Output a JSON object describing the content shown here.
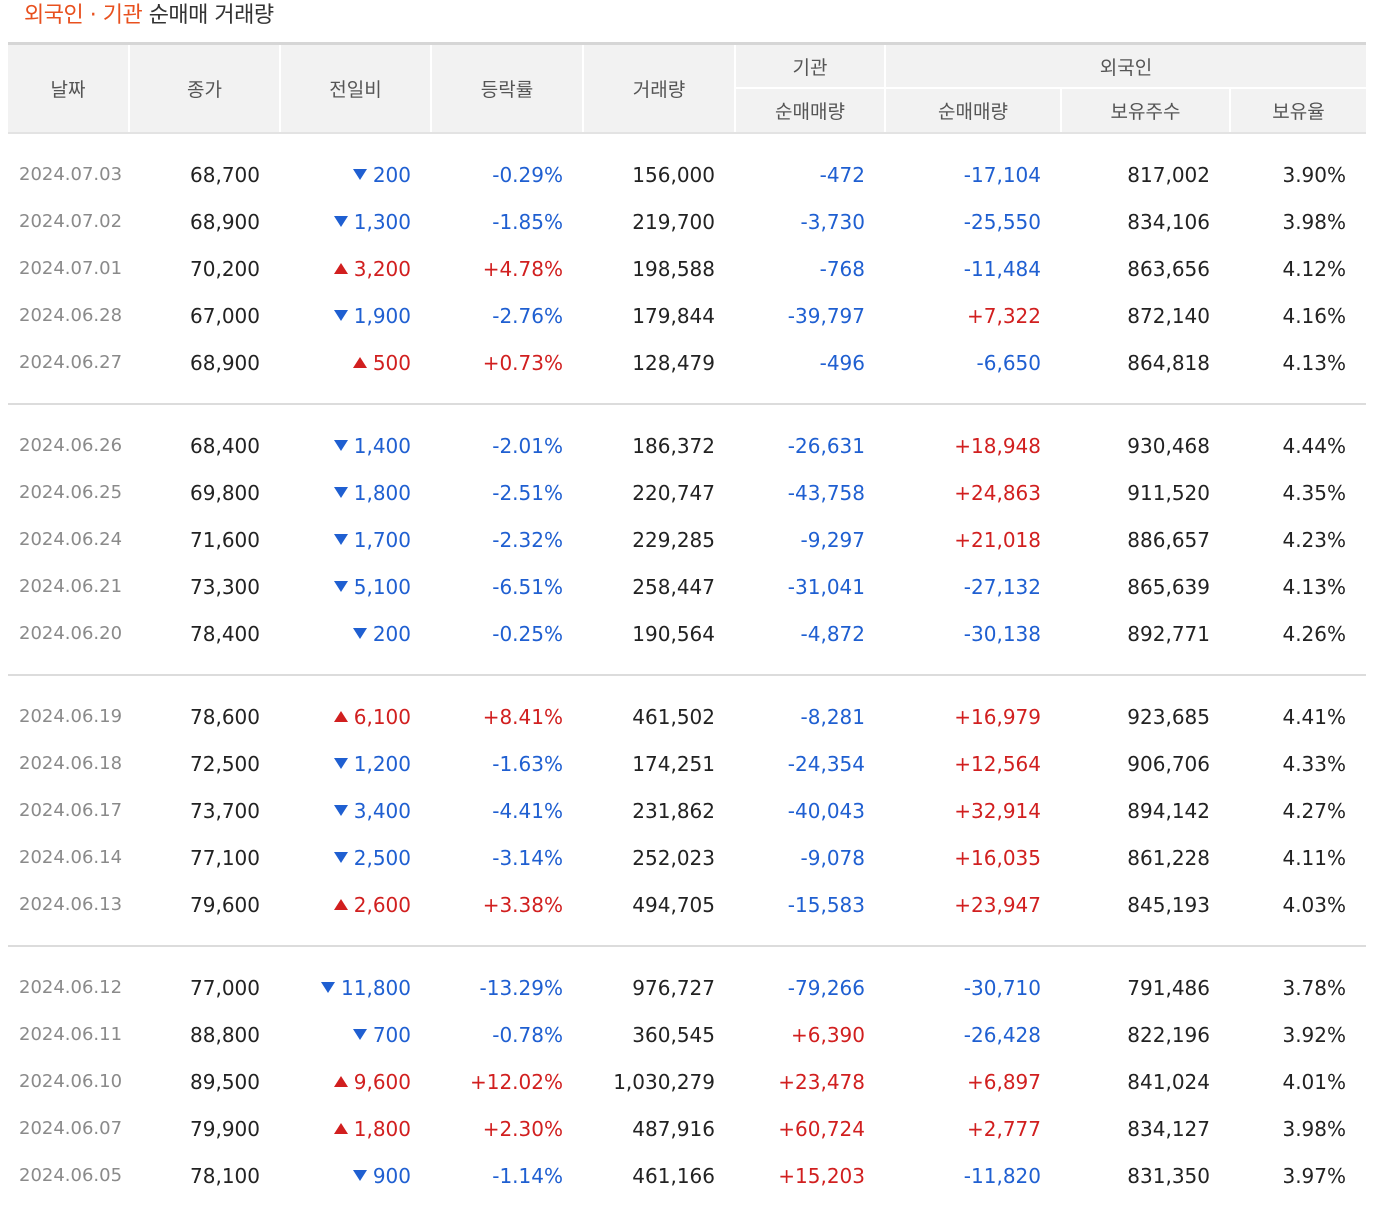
{
  "title": {
    "part1": "외국인",
    "dot": " · ",
    "part2": "기관",
    "part3": " 순매매 거래량"
  },
  "colors": {
    "up": "#d11f1f",
    "down": "#1f5fd1",
    "accent": "#e8501e"
  },
  "headers": {
    "date": "날짜",
    "close": "종가",
    "diff": "전일비",
    "rate": "등락률",
    "volume": "거래량",
    "institution": "기관",
    "inst_net": "순매매량",
    "foreign": "외국인",
    "foreign_net": "순매매량",
    "foreign_hold": "보유주수",
    "foreign_ratio": "보유율"
  },
  "groups": [
    [
      {
        "date": "2024.07.03",
        "close": "68,700",
        "dir": "down",
        "diff": "200",
        "rate": "-0.29%",
        "volume": "156,000",
        "inst": "-472",
        "foreign": "-17,104",
        "hold": "817,002",
        "ratio": "3.90%"
      },
      {
        "date": "2024.07.02",
        "close": "68,900",
        "dir": "down",
        "diff": "1,300",
        "rate": "-1.85%",
        "volume": "219,700",
        "inst": "-3,730",
        "foreign": "-25,550",
        "hold": "834,106",
        "ratio": "3.98%"
      },
      {
        "date": "2024.07.01",
        "close": "70,200",
        "dir": "up",
        "diff": "3,200",
        "rate": "+4.78%",
        "volume": "198,588",
        "inst": "-768",
        "foreign": "-11,484",
        "hold": "863,656",
        "ratio": "4.12%"
      },
      {
        "date": "2024.06.28",
        "close": "67,000",
        "dir": "down",
        "diff": "1,900",
        "rate": "-2.76%",
        "volume": "179,844",
        "inst": "-39,797",
        "foreign": "+7,322",
        "hold": "872,140",
        "ratio": "4.16%"
      },
      {
        "date": "2024.06.27",
        "close": "68,900",
        "dir": "up",
        "diff": "500",
        "rate": "+0.73%",
        "volume": "128,479",
        "inst": "-496",
        "foreign": "-6,650",
        "hold": "864,818",
        "ratio": "4.13%"
      }
    ],
    [
      {
        "date": "2024.06.26",
        "close": "68,400",
        "dir": "down",
        "diff": "1,400",
        "rate": "-2.01%",
        "volume": "186,372",
        "inst": "-26,631",
        "foreign": "+18,948",
        "hold": "930,468",
        "ratio": "4.44%"
      },
      {
        "date": "2024.06.25",
        "close": "69,800",
        "dir": "down",
        "diff": "1,800",
        "rate": "-2.51%",
        "volume": "220,747",
        "inst": "-43,758",
        "foreign": "+24,863",
        "hold": "911,520",
        "ratio": "4.35%"
      },
      {
        "date": "2024.06.24",
        "close": "71,600",
        "dir": "down",
        "diff": "1,700",
        "rate": "-2.32%",
        "volume": "229,285",
        "inst": "-9,297",
        "foreign": "+21,018",
        "hold": "886,657",
        "ratio": "4.23%"
      },
      {
        "date": "2024.06.21",
        "close": "73,300",
        "dir": "down",
        "diff": "5,100",
        "rate": "-6.51%",
        "volume": "258,447",
        "inst": "-31,041",
        "foreign": "-27,132",
        "hold": "865,639",
        "ratio": "4.13%"
      },
      {
        "date": "2024.06.20",
        "close": "78,400",
        "dir": "down",
        "diff": "200",
        "rate": "-0.25%",
        "volume": "190,564",
        "inst": "-4,872",
        "foreign": "-30,138",
        "hold": "892,771",
        "ratio": "4.26%"
      }
    ],
    [
      {
        "date": "2024.06.19",
        "close": "78,600",
        "dir": "up",
        "diff": "6,100",
        "rate": "+8.41%",
        "volume": "461,502",
        "inst": "-8,281",
        "foreign": "+16,979",
        "hold": "923,685",
        "ratio": "4.41%"
      },
      {
        "date": "2024.06.18",
        "close": "72,500",
        "dir": "down",
        "diff": "1,200",
        "rate": "-1.63%",
        "volume": "174,251",
        "inst": "-24,354",
        "foreign": "+12,564",
        "hold": "906,706",
        "ratio": "4.33%"
      },
      {
        "date": "2024.06.17",
        "close": "73,700",
        "dir": "down",
        "diff": "3,400",
        "rate": "-4.41%",
        "volume": "231,862",
        "inst": "-40,043",
        "foreign": "+32,914",
        "hold": "894,142",
        "ratio": "4.27%"
      },
      {
        "date": "2024.06.14",
        "close": "77,100",
        "dir": "down",
        "diff": "2,500",
        "rate": "-3.14%",
        "volume": "252,023",
        "inst": "-9,078",
        "foreign": "+16,035",
        "hold": "861,228",
        "ratio": "4.11%"
      },
      {
        "date": "2024.06.13",
        "close": "79,600",
        "dir": "up",
        "diff": "2,600",
        "rate": "+3.38%",
        "volume": "494,705",
        "inst": "-15,583",
        "foreign": "+23,947",
        "hold": "845,193",
        "ratio": "4.03%"
      }
    ],
    [
      {
        "date": "2024.06.12",
        "close": "77,000",
        "dir": "down",
        "diff": "11,800",
        "rate": "-13.29%",
        "volume": "976,727",
        "inst": "-79,266",
        "foreign": "-30,710",
        "hold": "791,486",
        "ratio": "3.78%"
      },
      {
        "date": "2024.06.11",
        "close": "88,800",
        "dir": "down",
        "diff": "700",
        "rate": "-0.78%",
        "volume": "360,545",
        "inst": "+6,390",
        "foreign": "-26,428",
        "hold": "822,196",
        "ratio": "3.92%"
      },
      {
        "date": "2024.06.10",
        "close": "89,500",
        "dir": "up",
        "diff": "9,600",
        "rate": "+12.02%",
        "volume": "1,030,279",
        "inst": "+23,478",
        "foreign": "+6,897",
        "hold": "841,024",
        "ratio": "4.01%"
      },
      {
        "date": "2024.06.07",
        "close": "79,900",
        "dir": "up",
        "diff": "1,800",
        "rate": "+2.30%",
        "volume": "487,916",
        "inst": "+60,724",
        "foreign": "+2,777",
        "hold": "834,127",
        "ratio": "3.98%"
      },
      {
        "date": "2024.06.05",
        "close": "78,100",
        "dir": "down",
        "diff": "900",
        "rate": "-1.14%",
        "volume": "461,166",
        "inst": "+15,203",
        "foreign": "-11,820",
        "hold": "831,350",
        "ratio": "3.97%"
      }
    ]
  ]
}
